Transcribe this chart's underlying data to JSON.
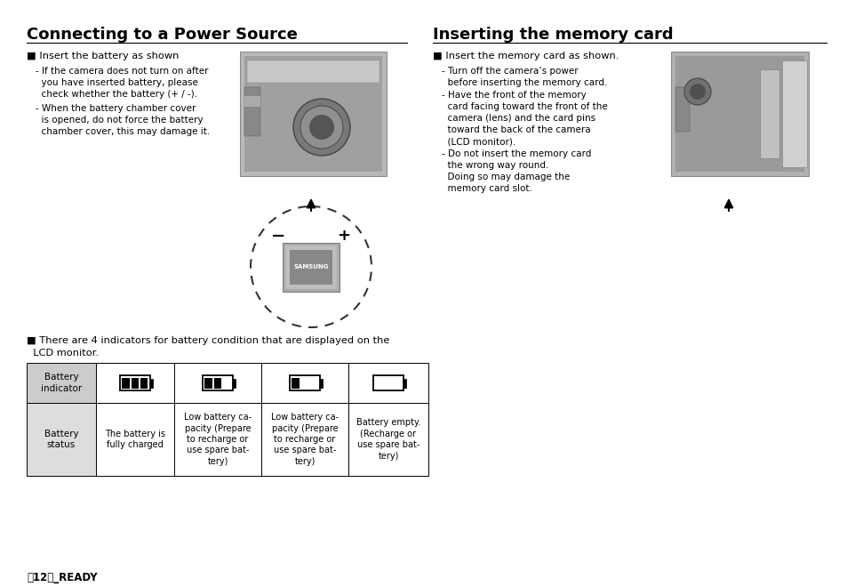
{
  "bg_color": "#ffffff",
  "title_left": "Connecting to a Power Source",
  "title_right": "Inserting the memory card",
  "left_bullet1": "■ Insert the battery as shown",
  "left_sub1a": "- If the camera does not turn on after",
  "left_sub1b": "  you have inserted battery, please",
  "left_sub1c": "  check whether the battery (+ / -).",
  "left_sub2a": "- When the battery chamber cover",
  "left_sub2b": "  is opened, do not force the battery",
  "left_sub2c": "  chamber cover, this may damage it.",
  "left_bullet2": "■ There are 4 indicators for battery condition that are displayed on the",
  "left_bullet2b": "  LCD monitor.",
  "right_bullet1": "■ Insert the memory card as shown.",
  "right_sub1a": "- Turn off the camera’s power",
  "right_sub1b": "  before inserting the memory card.",
  "right_sub2a": "- Have the front of the memory",
  "right_sub2b": "  card facing toward the front of the",
  "right_sub2c": "  camera (lens) and the card pins",
  "right_sub2d": "  toward the back of the camera",
  "right_sub2e": "  (LCD monitor).",
  "right_sub3a": "- Do not insert the memory card",
  "right_sub3b": "  the wrong way round.",
  "right_sub3c": "  Doing so may damage the",
  "right_sub3d": "  memory card slot.",
  "table_col0_row0": "Battery\nindicator",
  "table_col0_row1": "Battery\nstatus",
  "table_col1_row1": "The battery is\nfully charged",
  "table_col2_row1": "Low battery ca-\npacity (Prepare\nto recharge or\nuse spare bat-\ntery)",
  "table_col3_row1": "Low battery ca-\npacity (Prepare\nto recharge or\nuse spare bat-\ntery)",
  "table_col4_row1": "Battery empty.\n(Recharge or\nuse spare bat-\ntery)",
  "footer": "〒12〓_READY",
  "table_header_bg": "#cccccc",
  "table_status_bg": "#dddddd"
}
